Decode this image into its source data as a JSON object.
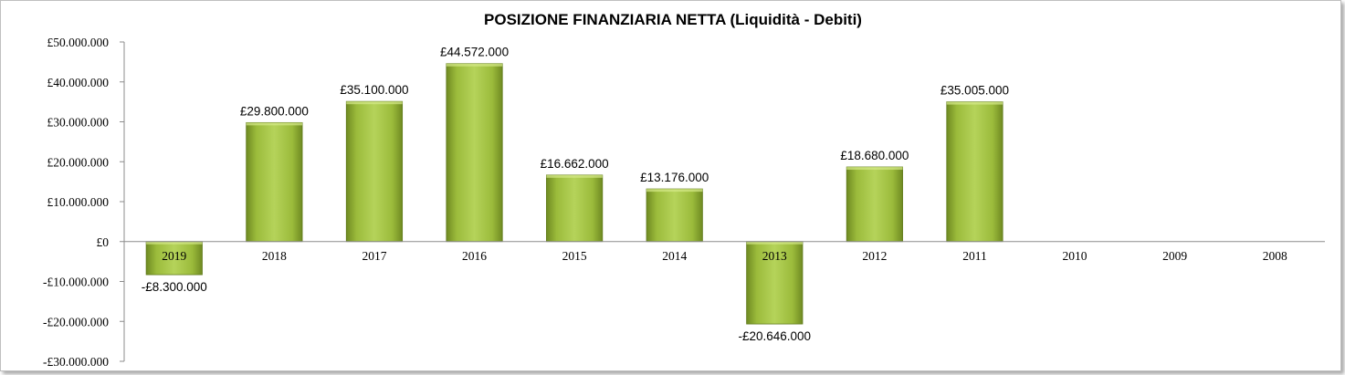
{
  "chart_data": {
    "type": "bar",
    "title": "POSIZIONE FINANZIARIA NETTA (Liquidità - Debiti)",
    "xlabel": "",
    "ylabel": "",
    "categories": [
      "2019",
      "2018",
      "2017",
      "2016",
      "2015",
      "2014",
      "2013",
      "2012",
      "2011",
      "2010",
      "2009",
      "2008"
    ],
    "values": [
      -8300000,
      29800000,
      35100000,
      44572000,
      16662000,
      13176000,
      -20646000,
      18680000,
      35005000,
      0,
      0,
      0
    ],
    "data_labels": [
      "-£8.300.000",
      "£29.800.000",
      "£35.100.000",
      "£44.572.000",
      "£16.662.000",
      "£13.176.000",
      "-£20.646.000",
      "£18.680.000",
      "£35.005.000",
      "",
      "",
      ""
    ],
    "ylim": [
      -30000000,
      50000000
    ],
    "y_ticks": [
      50000000,
      40000000,
      30000000,
      20000000,
      10000000,
      0,
      -10000000,
      -20000000,
      -30000000
    ],
    "y_tick_labels": [
      "£50.000.000",
      "£40.000.000",
      "£30.000.000",
      "£20.000.000",
      "£10.000.000",
      "£0",
      "-£10.000.000",
      "-£20.000.000",
      "-£30.000.000"
    ],
    "grid": false,
    "legend": "none",
    "colors": {
      "bar_light": "#b5d35a",
      "bar_mid": "#9bbb3b",
      "bar_dark": "#6f8a22",
      "bar_edge": "#5f7a1a"
    }
  }
}
